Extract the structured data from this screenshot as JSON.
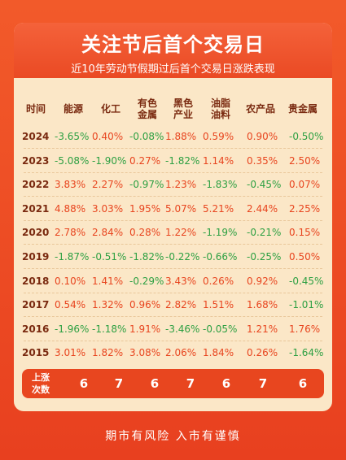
{
  "header": {
    "title": "关注节后首个交易日",
    "subtitle": "近10年劳动节假期过后首个交易日涨跌表现"
  },
  "table": {
    "columns": [
      {
        "label": "时间"
      },
      {
        "label": "能源"
      },
      {
        "label": "化工"
      },
      {
        "label": "有色\n金属"
      },
      {
        "label": "黑色\n产业"
      },
      {
        "label": "油脂\n油料"
      },
      {
        "label": "农产品"
      },
      {
        "label": "贵金属"
      }
    ],
    "rows": [
      {
        "year": "2024",
        "values": [
          "-3.65%",
          "0.40%",
          "-0.08%",
          "1.88%",
          "0.59%",
          "0.90%",
          "-0.50%"
        ]
      },
      {
        "year": "2023",
        "values": [
          "-5.08%",
          "-1.90%",
          "0.27%",
          "-1.82%",
          "1.14%",
          "0.35%",
          "2.50%"
        ]
      },
      {
        "year": "2022",
        "values": [
          "3.83%",
          "2.27%",
          "-0.97%",
          "1.23%",
          "-1.83%",
          "-0.45%",
          "0.07%"
        ]
      },
      {
        "year": "2021",
        "values": [
          "4.88%",
          "3.03%",
          "1.95%",
          "5.07%",
          "5.21%",
          "2.44%",
          "2.25%"
        ]
      },
      {
        "year": "2020",
        "values": [
          "2.78%",
          "2.84%",
          "0.28%",
          "1.22%",
          "-1.19%",
          "-0.21%",
          "0.15%"
        ]
      },
      {
        "year": "2019",
        "values": [
          "-1.87%",
          "-0.51%",
          "-1.82%",
          "-0.22%",
          "-0.66%",
          "-0.25%",
          "0.50%"
        ]
      },
      {
        "year": "2018",
        "values": [
          "0.10%",
          "1.41%",
          "-0.29%",
          "3.43%",
          "0.26%",
          "0.92%",
          "-0.45%"
        ]
      },
      {
        "year": "2017",
        "values": [
          "0.54%",
          "1.32%",
          "0.96%",
          "2.82%",
          "1.51%",
          "1.68%",
          "-1.01%"
        ]
      },
      {
        "year": "2016",
        "values": [
          "-1.96%",
          "-1.18%",
          "1.91%",
          "-3.46%",
          "-0.05%",
          "1.21%",
          "1.76%"
        ]
      },
      {
        "year": "2015",
        "values": [
          "3.01%",
          "1.82%",
          "3.08%",
          "2.06%",
          "1.84%",
          "0.26%",
          "-1.64%"
        ]
      }
    ],
    "totals_label": "上涨\n次数",
    "totals": [
      "6",
      "7",
      "6",
      "7",
      "6",
      "7",
      "6"
    ]
  },
  "footer": "期市有风险  入市有谨慎",
  "colors": {
    "background": "#ee4f23",
    "card": "#fbe7c7",
    "up": "#e8451f",
    "down": "#2ea043",
    "header_text": "#7a2a10"
  }
}
